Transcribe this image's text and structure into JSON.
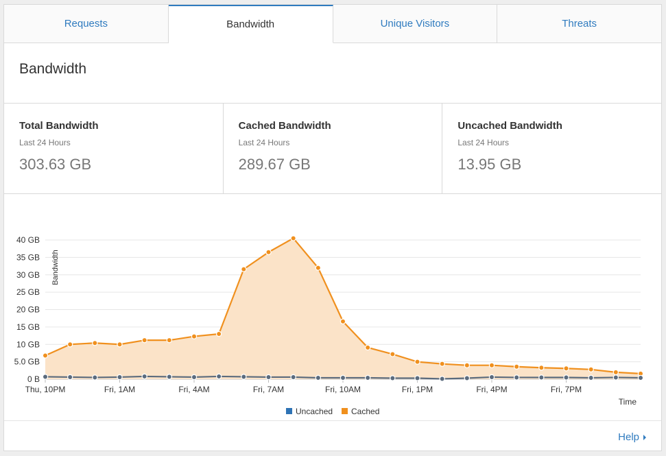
{
  "tabs": [
    {
      "label": "Requests",
      "active": false
    },
    {
      "label": "Bandwidth",
      "active": true
    },
    {
      "label": "Unique Visitors",
      "active": false
    },
    {
      "label": "Threats",
      "active": false
    }
  ],
  "page_title": "Bandwidth",
  "stats": [
    {
      "title": "Total Bandwidth",
      "subtitle": "Last 24 Hours",
      "value": "303.63 GB"
    },
    {
      "title": "Cached Bandwidth",
      "subtitle": "Last 24 Hours",
      "value": "289.67 GB"
    },
    {
      "title": "Uncached Bandwidth",
      "subtitle": "Last 24 Hours",
      "value": "13.95 GB"
    }
  ],
  "help_label": "Help",
  "chart_data": {
    "type": "area",
    "ylabel": "Bandwidth",
    "xlabel": "Time",
    "ylim": [
      0,
      40
    ],
    "y_ticks": [
      {
        "value": 0,
        "label": "0 B"
      },
      {
        "value": 5,
        "label": "5.0 GB"
      },
      {
        "value": 10,
        "label": "10 GB"
      },
      {
        "value": 15,
        "label": "15 GB"
      },
      {
        "value": 20,
        "label": "20 GB"
      },
      {
        "value": 25,
        "label": "25 GB"
      },
      {
        "value": 30,
        "label": "30 GB"
      },
      {
        "value": 35,
        "label": "35 GB"
      },
      {
        "value": 40,
        "label": "40 GB"
      }
    ],
    "x_ticks": [
      {
        "index": 0,
        "label": "Thu, 10PM"
      },
      {
        "index": 3,
        "label": "Fri, 1AM"
      },
      {
        "index": 6,
        "label": "Fri, 4AM"
      },
      {
        "index": 9,
        "label": "Fri, 7AM"
      },
      {
        "index": 12,
        "label": "Fri, 10AM"
      },
      {
        "index": 15,
        "label": "Fri, 1PM"
      },
      {
        "index": 18,
        "label": "Fri, 4PM"
      },
      {
        "index": 21,
        "label": "Fri, 7PM"
      }
    ],
    "grid": true,
    "legend_position": "bottom",
    "series": [
      {
        "name": "Uncached",
        "color": "#2e73b5",
        "values": [
          0.7,
          0.6,
          0.5,
          0.6,
          0.8,
          0.7,
          0.6,
          0.8,
          0.7,
          0.6,
          0.6,
          0.4,
          0.4,
          0.4,
          0.3,
          0.3,
          0.1,
          0.3,
          0.6,
          0.5,
          0.5,
          0.5,
          0.4,
          0.5,
          0.4
        ]
      },
      {
        "name": "Cached",
        "color": "#f0901e",
        "values": [
          6.8,
          10.0,
          10.4,
          10.0,
          11.2,
          11.2,
          12.3,
          13.0,
          31.6,
          36.5,
          40.5,
          32.0,
          16.6,
          9.1,
          7.2,
          5.0,
          4.4,
          4.0,
          4.0,
          3.6,
          3.3,
          3.1,
          2.8,
          2.0,
          1.6
        ]
      }
    ]
  }
}
